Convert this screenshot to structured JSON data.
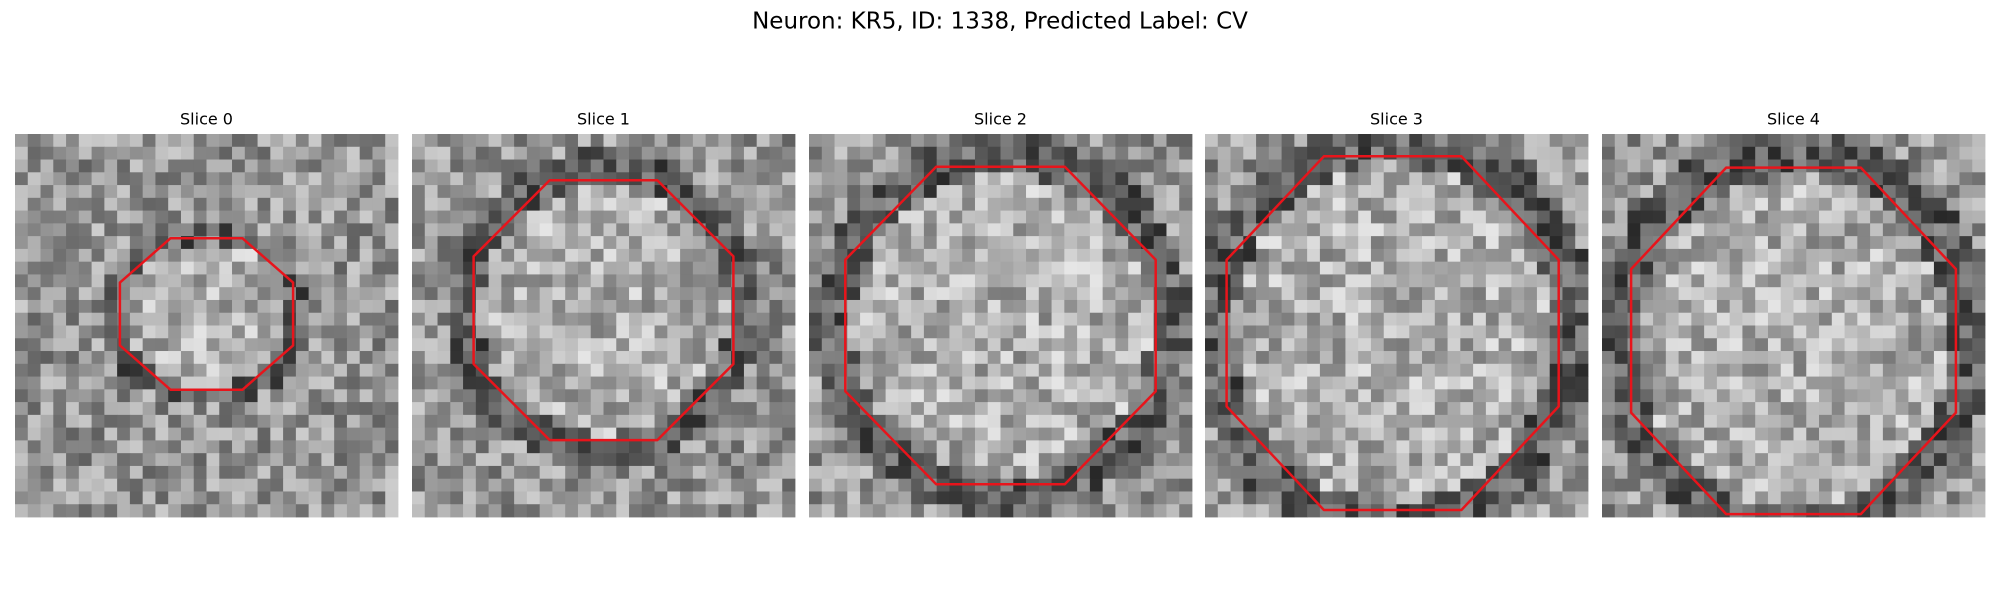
{
  "title": "Neuron: KR5, ID: 1338, Predicted Label: CV",
  "panels": [
    {
      "title": "Slice 0"
    },
    {
      "title": "Slice 1"
    },
    {
      "title": "Slice 2"
    },
    {
      "title": "Slice 3"
    },
    {
      "title": "Slice 4"
    }
  ]
}
